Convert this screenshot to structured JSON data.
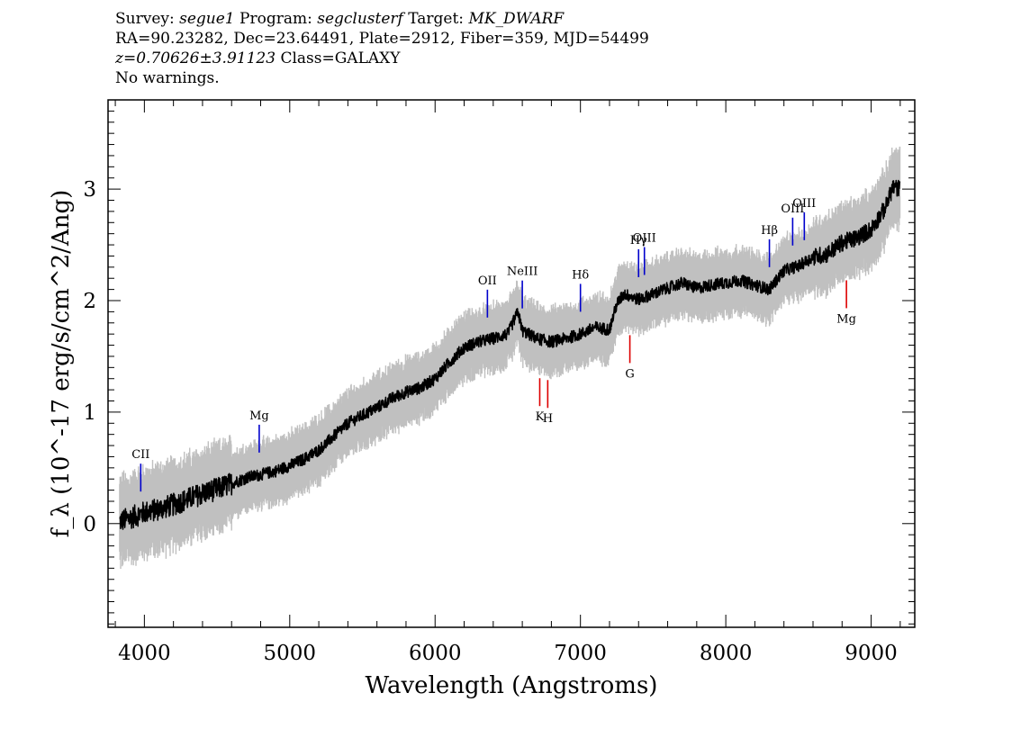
{
  "header": {
    "survey_key": "Survey:",
    "survey": "segue1",
    "program_key": "Program:",
    "program": "segclusterf",
    "target_key": "Target:",
    "target": "MK_DWARF",
    "line2": "RA=90.23282, Dec=23.64491, Plate=2912, Fiber=359, MJD=54499",
    "z_value": "z=0.70626±3.91123",
    "class_text": "Class=GALAXY",
    "warnings": "No warnings."
  },
  "chart_data": {
    "type": "line",
    "title": "",
    "xlabel": "Wavelength (Angstroms)",
    "ylabel": "f_λ (10^-17 erg/s/cm^2/Ang)",
    "xlim": [
      3750,
      9300
    ],
    "ylim": [
      -0.93,
      3.8
    ],
    "x_ticks": [
      4000,
      5000,
      6000,
      7000,
      8000,
      9000
    ],
    "y_ticks": [
      0,
      1,
      2,
      3
    ],
    "colors": {
      "spectrum": "#000000",
      "error_band": "#c0c0c0",
      "emission": "#0000cc",
      "absorption": "#dd0000"
    },
    "series": [
      {
        "x": [
          3830,
          3900,
          4000,
          4100,
          4200,
          4300,
          4400,
          4500,
          4600,
          4700,
          4800,
          4900,
          5000,
          5100,
          5200,
          5300,
          5400,
          5500,
          5600,
          5700,
          5800,
          5900,
          6000,
          6100,
          6200,
          6300,
          6400,
          6500,
          6570,
          6600,
          6700,
          6800,
          6900,
          7000,
          7100,
          7200,
          7250,
          7300,
          7400,
          7500,
          7600,
          7700,
          7800,
          7900,
          8000,
          8100,
          8200,
          8300,
          8400,
          8500,
          8600,
          8700,
          8800,
          8900,
          9000,
          9100,
          9150,
          9200
        ],
        "values": [
          0.02,
          0.05,
          0.1,
          0.13,
          0.17,
          0.22,
          0.27,
          0.31,
          0.36,
          0.41,
          0.44,
          0.47,
          0.52,
          0.58,
          0.66,
          0.78,
          0.9,
          0.97,
          1.04,
          1.12,
          1.18,
          1.22,
          1.3,
          1.45,
          1.58,
          1.63,
          1.66,
          1.7,
          1.9,
          1.73,
          1.66,
          1.63,
          1.66,
          1.7,
          1.76,
          1.74,
          1.97,
          2.06,
          2.01,
          2.06,
          2.11,
          2.16,
          2.11,
          2.14,
          2.16,
          2.18,
          2.14,
          2.1,
          2.27,
          2.31,
          2.39,
          2.42,
          2.52,
          2.56,
          2.64,
          2.84,
          3.02,
          3.0
        ]
      }
    ],
    "lines": [
      {
        "label": "CII",
        "x": 3975,
        "kind": "emission"
      },
      {
        "label": "Mg",
        "x": 4790,
        "kind": "emission"
      },
      {
        "label": "OII",
        "x": 6360,
        "kind": "emission"
      },
      {
        "label": "NeIII",
        "x": 6600,
        "kind": "emission"
      },
      {
        "label": "Hδ",
        "x": 7000,
        "kind": "emission"
      },
      {
        "label": "Hγ",
        "x": 7400,
        "kind": "emission"
      },
      {
        "label": "OIII",
        "x": 7440,
        "kind": "emission"
      },
      {
        "label": "Hβ",
        "x": 8300,
        "kind": "emission"
      },
      {
        "label": "OIII",
        "x": 8460,
        "kind": "emission"
      },
      {
        "label": "OIII",
        "x": 8540,
        "kind": "emission"
      },
      {
        "label": "K",
        "x": 6720,
        "kind": "absorption"
      },
      {
        "label": "H",
        "x": 6775,
        "kind": "absorption"
      },
      {
        "label": "G",
        "x": 7340,
        "kind": "absorption"
      },
      {
        "label": "Mg",
        "x": 8830,
        "kind": "absorption"
      }
    ]
  }
}
